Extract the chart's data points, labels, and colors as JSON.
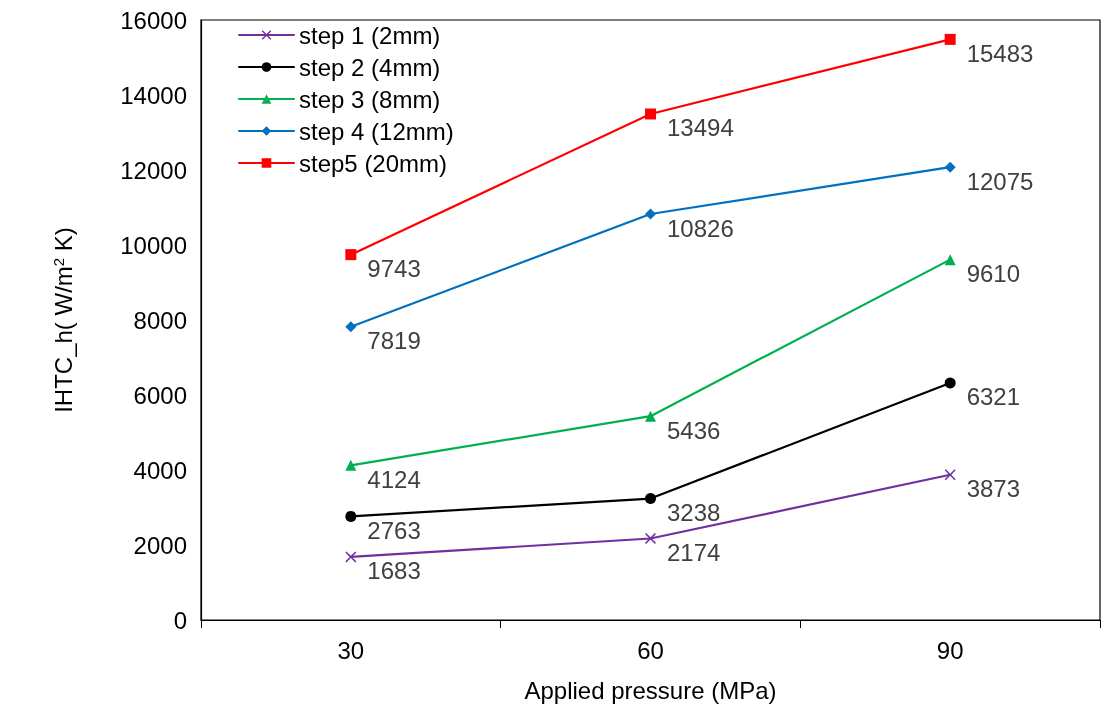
{
  "chart_data": {
    "type": "line",
    "xlabel": "Applied pressure (MPa)",
    "ylabel": "IHTC_h( W/m$^{2}$ K)",
    "categories": [
      "30",
      "60",
      "90"
    ],
    "ylim": [
      0,
      16000
    ],
    "yticks": [
      0,
      2000,
      4000,
      6000,
      8000,
      10000,
      12000,
      14000,
      16000
    ],
    "grid": false,
    "legend": "top left",
    "data_labels": true,
    "line_style": "solid",
    "series": [
      {
        "name": "step 1 (2mm)",
        "color": "#7030a0",
        "marker": "cross",
        "values": [
          1683,
          2174,
          3873
        ]
      },
      {
        "name": "step 2 (4mm)",
        "color": "#000000",
        "marker": "circle",
        "values": [
          2763,
          3238,
          6321
        ]
      },
      {
        "name": "step 3 (8mm)",
        "color": "#00b050",
        "marker": "triangle",
        "values": [
          4124,
          5436,
          9610
        ]
      },
      {
        "name": "step 4 (12mm)",
        "color": "#0070c0",
        "marker": "diamond",
        "values": [
          7819,
          10826,
          12075
        ]
      },
      {
        "name": "step5 (20mm)",
        "color": "#ff0000",
        "marker": "square",
        "values": [
          9743,
          13494,
          15483
        ]
      }
    ]
  }
}
